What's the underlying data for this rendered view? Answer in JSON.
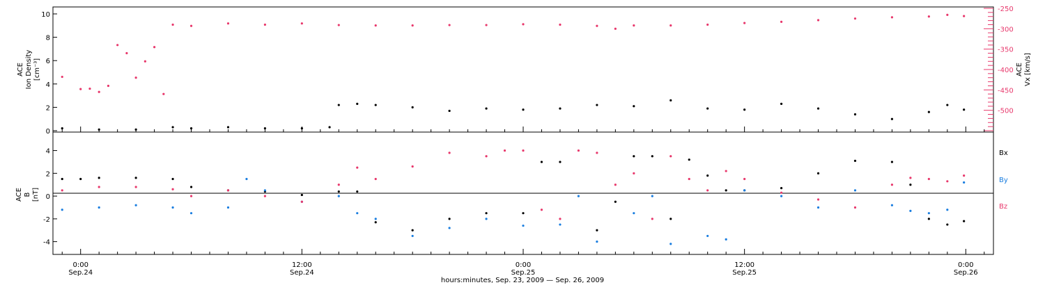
{
  "colors": {
    "black": "#000000",
    "pink": "#e8386c",
    "blue": "#1a7ee0"
  },
  "chart_data": [
    {
      "type": "scatter",
      "panel": "top",
      "ylabel_left": [
        "ACE",
        "Ion Density",
        "[cm⁻³]"
      ],
      "ylabel_right": [
        "ACE",
        "Vx [km/s]"
      ],
      "ylim_left": [
        0,
        10
      ],
      "ylim_right": [
        -550,
        -250
      ],
      "left_ticks": [
        "0",
        "2",
        "4",
        "6",
        "8",
        "10"
      ],
      "right_ticks": [
        "-250",
        "-300",
        "-350",
        "-400",
        "-450",
        "-500"
      ],
      "series": [
        {
          "axis": "left",
          "color": "black",
          "x_hours": [
            -1,
            1,
            3,
            5,
            6,
            8,
            10,
            12,
            13.5,
            14,
            15,
            16,
            18,
            20,
            22,
            24,
            26,
            28,
            30,
            32,
            34,
            36,
            38,
            40,
            42,
            44,
            46,
            47,
            47.9
          ],
          "values": [
            0.2,
            0.1,
            0.1,
            0.3,
            0.2,
            0.3,
            0.2,
            0.2,
            0.3,
            2.2,
            2.3,
            2.2,
            2.0,
            1.7,
            1.9,
            1.8,
            1.9,
            2.2,
            2.1,
            2.6,
            1.9,
            1.8,
            2.3,
            1.9,
            1.4,
            1.0,
            1.6,
            2.2,
            1.8
          ]
        },
        {
          "axis": "right",
          "color": "pink",
          "x_hours": [
            -1,
            0,
            0.5,
            1,
            1.5,
            2,
            2.5,
            3,
            3.5,
            4,
            4.5,
            5,
            6,
            8,
            10,
            12,
            14,
            16,
            18,
            20,
            22,
            24,
            26,
            28,
            29,
            30,
            32,
            34,
            36,
            38,
            40,
            42,
            44,
            46,
            47,
            47.9
          ],
          "values": [
            -418,
            -448,
            -447,
            -455,
            -440,
            -340,
            -360,
            -420,
            -380,
            -345,
            -460,
            -290,
            -293,
            -287,
            -290,
            -287,
            -291,
            -292,
            -292,
            -291,
            -291,
            -289,
            -290,
            -293,
            -300,
            -292,
            -292,
            -290,
            -286,
            -283,
            -279,
            -275,
            -272,
            -270,
            -266,
            -269
          ]
        }
      ]
    },
    {
      "type": "scatter",
      "panel": "bottom",
      "ylabel_left": [
        "ACE",
        "B",
        "[nT]"
      ],
      "ylim": [
        -5,
        5.5
      ],
      "ticks": [
        "4",
        "2",
        "0",
        "-2",
        "-4"
      ],
      "legend": [
        "Bx",
        "By",
        "Bz"
      ],
      "legend_placement": "right",
      "series": [
        {
          "name": "Bx",
          "color": "black",
          "x_hours": [
            -1,
            0,
            1,
            3,
            5,
            6,
            8,
            10,
            12,
            14,
            15,
            16,
            18,
            20,
            22,
            24,
            25,
            26,
            28,
            29,
            30,
            31,
            32,
            33,
            34,
            35,
            36,
            38,
            40,
            42,
            44,
            45,
            46,
            47,
            47.9
          ],
          "values": [
            1.5,
            1.5,
            1.6,
            1.6,
            1.5,
            0.8,
            0.5,
            0.4,
            0.1,
            0.4,
            0.4,
            -2.3,
            -3.0,
            -2.0,
            -1.5,
            -1.5,
            3.0,
            3.0,
            -3.0,
            -0.5,
            3.5,
            3.5,
            -2.0,
            3.2,
            1.8,
            0.5,
            0.5,
            0.7,
            2.0,
            3.1,
            3.0,
            1.0,
            -2.0,
            -2.5,
            -2.2
          ]
        },
        {
          "name": "By",
          "color": "blue",
          "x_hours": [
            -1,
            1,
            3,
            5,
            6,
            8,
            9,
            10,
            12,
            14,
            15,
            16,
            18,
            20,
            22,
            24,
            26,
            27,
            28,
            30,
            31,
            32,
            34,
            35,
            36,
            38,
            40,
            42,
            44,
            45,
            46,
            47,
            47.9
          ],
          "values": [
            -1.2,
            -1.0,
            -0.8,
            -1.0,
            -1.5,
            -1.0,
            1.5,
            0.5,
            -0.5,
            0.0,
            -1.5,
            -2.0,
            -3.5,
            -2.8,
            -2.0,
            -2.6,
            -2.5,
            0.0,
            -4.0,
            -1.5,
            0.0,
            -4.2,
            -3.5,
            -3.8,
            0.5,
            0.0,
            -1.0,
            0.5,
            -0.8,
            -1.3,
            -1.5,
            -1.2,
            1.2
          ]
        },
        {
          "name": "Bz",
          "color": "pink",
          "x_hours": [
            -1,
            1,
            3,
            5,
            6,
            8,
            10,
            12,
            14,
            15,
            16,
            18,
            20,
            22,
            23,
            24,
            25,
            26,
            27,
            28,
            29,
            30,
            31,
            32,
            33,
            34,
            35,
            36,
            38,
            40,
            42,
            44,
            45,
            46,
            47,
            47.9
          ],
          "values": [
            0.5,
            0.8,
            0.8,
            0.6,
            0.0,
            0.5,
            0.0,
            -0.5,
            1.0,
            2.5,
            1.5,
            2.6,
            3.8,
            3.5,
            4.0,
            4.0,
            -1.2,
            -2.0,
            4.0,
            3.8,
            1.0,
            2.0,
            -2.0,
            3.5,
            1.5,
            0.5,
            2.2,
            1.5,
            0.3,
            -0.3,
            -1.0,
            1.0,
            1.6,
            1.5,
            1.3,
            1.8
          ]
        }
      ]
    }
  ],
  "x_axis": {
    "ticks": [
      {
        "hour": 0,
        "time": "0:00",
        "date": "Sep.24"
      },
      {
        "hour": 12,
        "time": "12:00",
        "date": "Sep.24"
      },
      {
        "hour": 24,
        "time": "0:00",
        "date": "Sep.25"
      },
      {
        "hour": 36,
        "time": "12:00",
        "date": "Sep.25"
      },
      {
        "hour": 48,
        "time": "0:00",
        "date": "Sep.26"
      }
    ],
    "title": "hours:minutes, Sep. 23, 2009 — Sep. 26, 2009"
  }
}
